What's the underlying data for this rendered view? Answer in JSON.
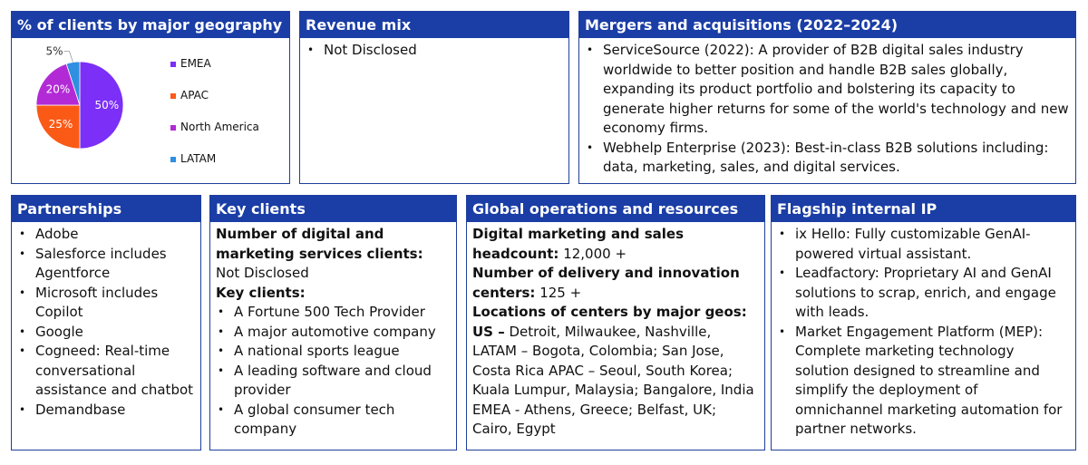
{
  "geography": {
    "title": "% of clients by major geography",
    "chart_data": {
      "type": "pie",
      "categories": [
        "EMEA",
        "APAC",
        "North America",
        "LATAM"
      ],
      "values": [
        50,
        25,
        20,
        5
      ],
      "labels": [
        "50%",
        "25%",
        "20%",
        "5%"
      ],
      "colors": [
        "#7b2ff7",
        "#fb5a16",
        "#b22ad6",
        "#2f8fe0"
      ],
      "legend_position": "right"
    }
  },
  "revenue_mix": {
    "title": "Revenue mix",
    "items": [
      "Not Disclosed"
    ]
  },
  "mergers": {
    "title": "Mergers and acquisitions (2022–2024)",
    "items": [
      "ServiceSource (2022): A provider of B2B digital sales industry worldwide to better position and handle B2B sales globally, expanding its product portfolio and bolstering its capacity to generate higher returns for some of the world's technology and new economy firms.",
      "Webhelp Enterprise (2023): Best-in-class B2B solutions including: data, marketing, sales, and digital services."
    ]
  },
  "partnerships": {
    "title": "Partnerships",
    "items": [
      "Adobe",
      "Salesforce includes Agentforce",
      "Microsoft includes Copilot",
      "Google",
      "Cogneed: Real-time conversational assistance and chatbot",
      "Demandbase"
    ]
  },
  "key_clients": {
    "title": "Key clients",
    "count_label": "Number of digital and marketing services clients:",
    "count_value": "Not Disclosed",
    "list_label": "Key clients:",
    "items": [
      "A Fortune 500 Tech Provider",
      "A major automotive company",
      "A national sports league",
      "A leading software and cloud provider",
      "A global consumer tech company"
    ]
  },
  "global_ops": {
    "title": "Global operations and resources",
    "headcount_label": "Digital marketing and sales headcount:",
    "headcount_value": " 12,000 +",
    "centers_label": "Number of delivery and innovation centers:",
    "centers_value": " 125 +",
    "locations_label": "Locations of centers by major geos: US –",
    "locations_value": " Detroit, Milwaukee, Nashville, LATAM – Bogota, Colombia; San Jose, Costa Rica APAC – Seoul, South Korea; Kuala Lumpur, Malaysia; Bangalore, India EMEA - Athens, Greece; Belfast, UK; Cairo, Egypt"
  },
  "flagship_ip": {
    "title": "Flagship internal IP",
    "items": [
      "ix Hello: Fully customizable GenAI-powered virtual assistant.",
      "Leadfactory: Proprietary AI and GenAI solutions to scrap, enrich, and engage with leads.",
      "Market Engagement Platform (MEP): Complete marketing technology solution designed to streamline and simplify the deployment of omnichannel marketing automation for partner networks."
    ]
  }
}
